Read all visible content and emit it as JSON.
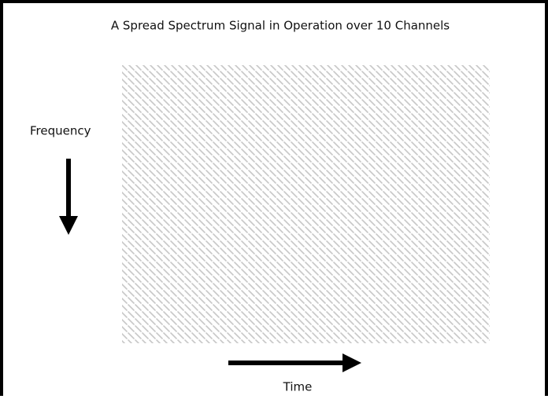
{
  "title": "A  Spread Spectrum Signal in Operation over 10 Channels",
  "y_label": "Frequency",
  "x_label": "Time"
}
